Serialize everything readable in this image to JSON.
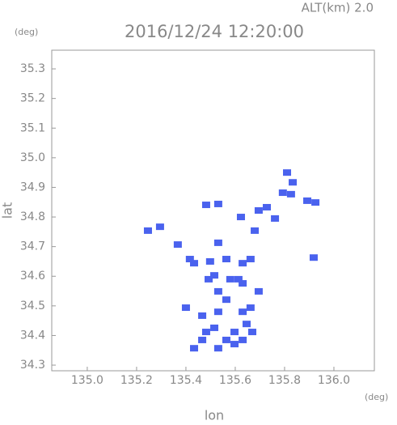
{
  "chart_data": {
    "type": "scatter",
    "title": "2016/12/24 12:20:00",
    "subtitle": "ALT(km)  2.0",
    "y_unit": "(deg)",
    "x_unit": "(deg)",
    "x_label": "lon",
    "y_label": "lat",
    "xlim": [
      134.856,
      136.164
    ],
    "ylim": [
      34.281,
      35.363
    ],
    "xticks": [
      {
        "value": 135.0,
        "label": "135.0"
      },
      135.2,
      135.4,
      135.6,
      135.8,
      {
        "value": 136.0,
        "label": "136.0"
      }
    ],
    "yticks": [
      34.3,
      34.4,
      34.5,
      34.6,
      34.7,
      34.8,
      34.9,
      {
        "value": 35.0,
        "label": "35.0"
      },
      35.1,
      35.2,
      35.3
    ],
    "series": [
      {
        "color": "#4a62ee",
        "x": [
          135.81,
          135.833,
          135.793,
          135.826,
          135.892,
          135.925,
          135.728,
          135.623,
          135.482,
          135.531,
          135.246,
          135.295,
          135.367,
          135.416,
          135.433,
          135.498,
          135.531,
          135.564,
          135.63,
          135.662,
          135.613,
          135.515,
          135.531,
          135.564,
          135.63,
          135.662,
          135.531,
          135.515,
          135.597,
          135.646,
          135.63,
          135.564,
          135.466,
          135.433,
          135.531,
          135.597,
          135.482,
          135.679,
          135.695,
          135.761,
          135.918,
          135.466,
          135.492,
          135.58,
          135.63,
          135.695,
          135.669,
          135.4
        ],
        "y": [
          34.95,
          34.917,
          34.882,
          34.877,
          34.855,
          34.849,
          34.833,
          34.8,
          34.841,
          34.844,
          34.754,
          34.767,
          34.707,
          34.658,
          34.644,
          34.65,
          34.713,
          34.658,
          34.644,
          34.658,
          34.59,
          34.603,
          34.549,
          34.521,
          34.48,
          34.494,
          34.48,
          34.426,
          34.412,
          34.439,
          34.385,
          34.385,
          34.385,
          34.357,
          34.357,
          34.371,
          34.412,
          34.754,
          34.822,
          34.795,
          34.663,
          34.467,
          34.59,
          34.59,
          34.576,
          34.549,
          34.412,
          34.494
        ]
      }
    ]
  }
}
